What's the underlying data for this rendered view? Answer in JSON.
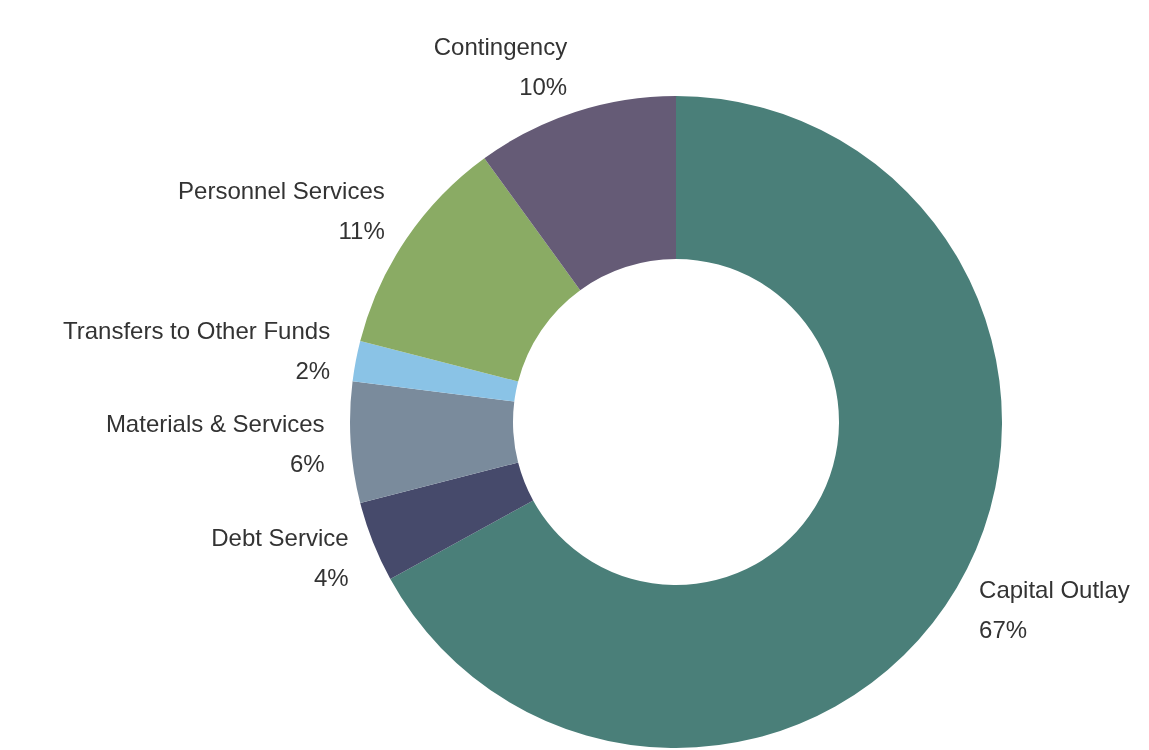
{
  "chart_data": {
    "type": "donut",
    "categories": [
      "Capital Outlay",
      "Debt Service",
      "Materials & Services",
      "Transfers to Other Funds",
      "Personnel Services",
      "Contingency"
    ],
    "values": [
      67,
      4,
      6,
      2,
      11,
      10
    ],
    "value_labels": [
      "67%",
      "4%",
      "6%",
      "2%",
      "11%",
      "10%"
    ],
    "colors": [
      "#4a7f79",
      "#464a6b",
      "#7a8b9c",
      "#8ac3e6",
      "#8aab64",
      "#655b76"
    ],
    "legend": false
  }
}
